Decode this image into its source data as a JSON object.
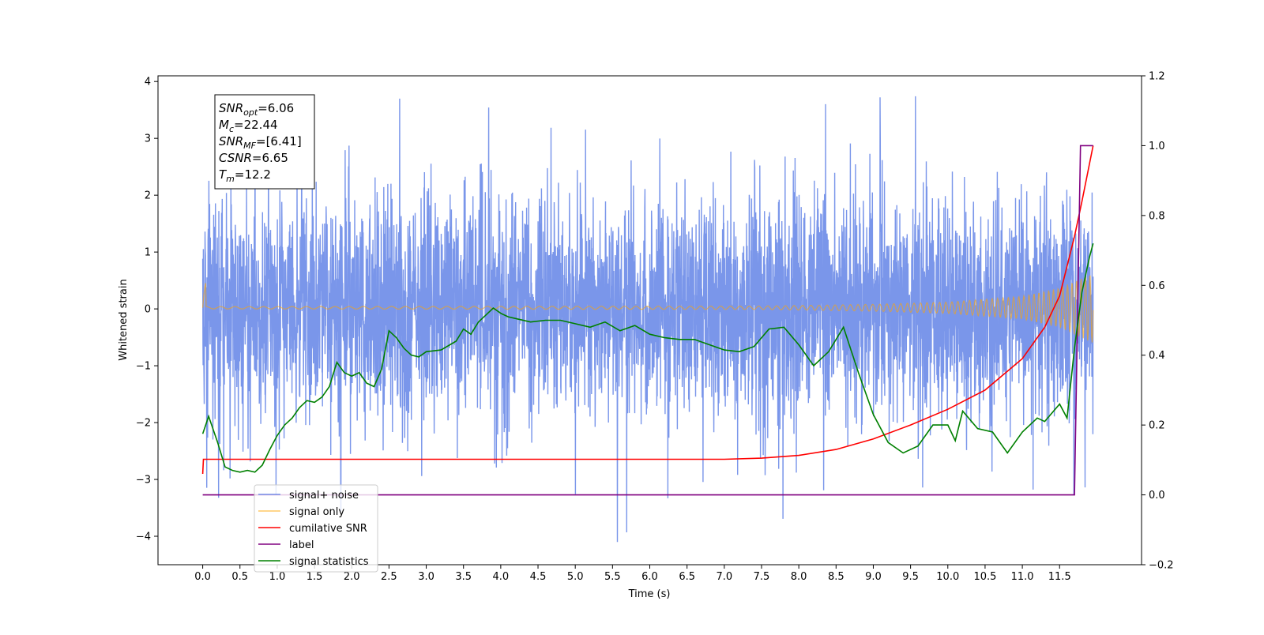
{
  "chart_data": {
    "type": "line",
    "xlabel": "Time (s)",
    "ylabel": "Whitened strain",
    "xlim": [
      -0.6,
      12.6
    ],
    "ylim": [
      -4.5,
      4.1
    ],
    "y2lim": [
      -0.2,
      1.2
    ],
    "grid": false,
    "legend_position": "lower-left",
    "x_ticks": [
      0.0,
      0.5,
      1.0,
      1.5,
      2.0,
      2.5,
      3.0,
      3.5,
      4.0,
      4.5,
      5.0,
      5.5,
      6.0,
      6.5,
      7.0,
      7.5,
      8.0,
      8.5,
      9.0,
      9.5,
      10.0,
      10.5,
      11.0,
      11.5
    ],
    "x_tick_labels": [
      "0.0",
      "0.5",
      "1.0",
      "1.5",
      "2.0",
      "2.5",
      "3.0",
      "3.5",
      "4.0",
      "4.5",
      "5.0",
      "5.5",
      "6.0",
      "6.5",
      "7.0",
      "7.5",
      "8.0",
      "8.5",
      "9.0",
      "9.5",
      "10.0",
      "10.5",
      "11.0",
      "11.5"
    ],
    "y_ticks": [
      -4,
      -3,
      -2,
      -1,
      0,
      1,
      2,
      3,
      4
    ],
    "y_tick_labels": [
      "−4",
      "−3",
      "−2",
      "−1",
      "0",
      "1",
      "2",
      "3",
      "4"
    ],
    "y2_ticks": [
      -0.2,
      0.0,
      0.2,
      0.4,
      0.6,
      0.8,
      1.0,
      1.2
    ],
    "y2_tick_labels": [
      "−0.2",
      "0.0",
      "0.2",
      "0.4",
      "0.6",
      "0.8",
      "1.0",
      "1.2"
    ],
    "info_box": {
      "lines": [
        {
          "base": "SNR",
          "sub": "opt",
          "value": "=6.06"
        },
        {
          "base": "M",
          "sub": "c",
          "value": "=22.44"
        },
        {
          "base": "SNR",
          "sub": "MF",
          "value": "=[6.41]"
        },
        {
          "base": "CSNR",
          "sub": "",
          "value": "=6.65"
        },
        {
          "base": "T",
          "sub": "m",
          "value": "=12.2"
        }
      ]
    },
    "series": [
      {
        "name": "signal+ noise",
        "color": "#4169e1",
        "axis": "left",
        "t_range": [
          0.0,
          11.95
        ],
        "amplitude_envelope": [
          [
            0.0,
            2.4
          ],
          [
            11.95,
            2.4
          ]
        ],
        "peak_range": [
          -4.1,
          3.75
        ]
      },
      {
        "name": "signal only",
        "color": "#ffa500",
        "axis": "left",
        "t_range": [
          0.0,
          11.95
        ],
        "amplitude_envelope": [
          [
            0.0,
            0.02
          ],
          [
            7.5,
            0.03
          ],
          [
            9.0,
            0.06
          ],
          [
            10.0,
            0.1
          ],
          [
            11.0,
            0.2
          ],
          [
            11.5,
            0.35
          ],
          [
            11.95,
            0.62
          ]
        ]
      },
      {
        "name": "cumilative SNR",
        "color": "#ff0000",
        "axis": "right",
        "x": [
          0.0,
          0.01,
          7.0,
          7.5,
          8.0,
          8.5,
          9.0,
          9.5,
          10.0,
          10.5,
          11.0,
          11.3,
          11.5,
          11.7,
          11.8,
          11.95
        ],
        "y": [
          0.06,
          0.102,
          0.102,
          0.105,
          0.113,
          0.13,
          0.16,
          0.2,
          0.245,
          0.3,
          0.39,
          0.48,
          0.57,
          0.74,
          0.84,
          1.0
        ]
      },
      {
        "name": "label",
        "color": "#800080",
        "axis": "right",
        "x": [
          0.0,
          11.7,
          11.78,
          11.95
        ],
        "y": [
          0.0,
          0.0,
          1.0,
          1.0
        ]
      },
      {
        "name": "signal statistics",
        "color": "#008000",
        "axis": "right",
        "x": [
          0.0,
          0.08,
          0.2,
          0.3,
          0.4,
          0.5,
          0.6,
          0.7,
          0.8,
          0.9,
          1.0,
          1.1,
          1.2,
          1.3,
          1.4,
          1.5,
          1.6,
          1.7,
          1.8,
          1.9,
          2.0,
          2.1,
          2.2,
          2.3,
          2.4,
          2.5,
          2.6,
          2.7,
          2.8,
          2.9,
          3.0,
          3.2,
          3.4,
          3.5,
          3.6,
          3.7,
          3.8,
          3.9,
          4.0,
          4.1,
          4.2,
          4.4,
          4.6,
          4.8,
          5.0,
          5.2,
          5.4,
          5.6,
          5.8,
          6.0,
          6.2,
          6.4,
          6.6,
          6.8,
          7.0,
          7.2,
          7.4,
          7.6,
          7.8,
          8.0,
          8.2,
          8.4,
          8.6,
          8.8,
          9.0,
          9.2,
          9.4,
          9.6,
          9.8,
          10.0,
          10.1,
          10.2,
          10.4,
          10.6,
          10.8,
          11.0,
          11.2,
          11.3,
          11.5,
          11.6,
          11.7,
          11.8,
          11.9,
          11.95
        ],
        "y": [
          0.175,
          0.225,
          0.15,
          0.08,
          0.07,
          0.065,
          0.07,
          0.065,
          0.085,
          0.13,
          0.17,
          0.2,
          0.22,
          0.25,
          0.27,
          0.265,
          0.28,
          0.31,
          0.38,
          0.35,
          0.34,
          0.35,
          0.32,
          0.31,
          0.36,
          0.47,
          0.45,
          0.42,
          0.4,
          0.395,
          0.41,
          0.415,
          0.44,
          0.475,
          0.46,
          0.495,
          0.515,
          0.535,
          0.52,
          0.51,
          0.505,
          0.495,
          0.5,
          0.5,
          0.49,
          0.48,
          0.495,
          0.47,
          0.485,
          0.46,
          0.45,
          0.445,
          0.445,
          0.43,
          0.415,
          0.41,
          0.425,
          0.475,
          0.48,
          0.43,
          0.37,
          0.41,
          0.48,
          0.35,
          0.23,
          0.15,
          0.12,
          0.14,
          0.2,
          0.2,
          0.155,
          0.24,
          0.19,
          0.18,
          0.12,
          0.18,
          0.22,
          0.21,
          0.26,
          0.22,
          0.42,
          0.58,
          0.68,
          0.72
        ]
      }
    ]
  }
}
